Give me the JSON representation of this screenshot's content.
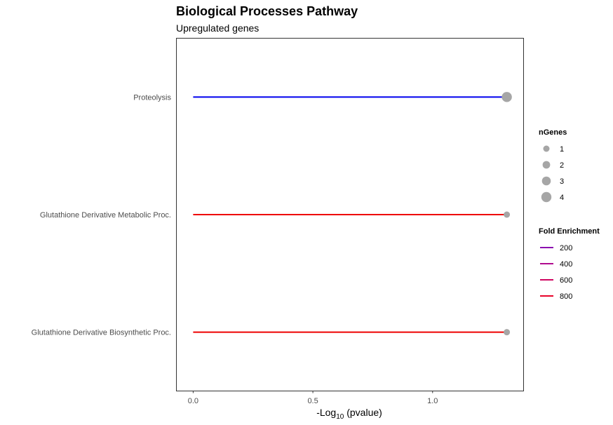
{
  "chart_data": {
    "type": "lollipop",
    "title": "Biological Processes Pathway",
    "subtitle": "Upregulated genes",
    "xlabel": {
      "prefix": "-Log",
      "subscript": "10",
      "suffix": " (pvalue)"
    },
    "xlim": [
      -0.07,
      1.38
    ],
    "xticks": [
      {
        "value": 0.0,
        "label": "0.0"
      },
      {
        "value": 0.5,
        "label": "0.5"
      },
      {
        "value": 1.0,
        "label": "1.0"
      }
    ],
    "grid": false,
    "categories": [
      "Proteolysis",
      "Glutathione Derivative Metabolic Proc.",
      "Glutathione Derivative Biosynthetic Proc."
    ],
    "values": [
      1.31,
      1.31,
      1.31
    ],
    "nGenes": [
      4,
      1,
      1
    ],
    "fold_enrichment": [
      1,
      800,
      800
    ],
    "line_colors": [
      "#0000ee",
      "#ee0000",
      "#ee0000"
    ],
    "point_color": "#a6a6a6",
    "legends": {
      "placement": "right",
      "size": {
        "title": "nGenes",
        "entries": [
          {
            "label": "1",
            "value": 1
          },
          {
            "label": "2",
            "value": 2
          },
          {
            "label": "3",
            "value": 3
          },
          {
            "label": "4",
            "value": 4
          }
        ]
      },
      "color": {
        "title": "Fold Enrichment",
        "entries": [
          {
            "label": "200",
            "color": "#8b0fb0"
          },
          {
            "label": "400",
            "color": "#b00b8e"
          },
          {
            "label": "600",
            "color": "#cf0660"
          },
          {
            "label": "800",
            "color": "#e8042a"
          }
        ]
      }
    }
  }
}
